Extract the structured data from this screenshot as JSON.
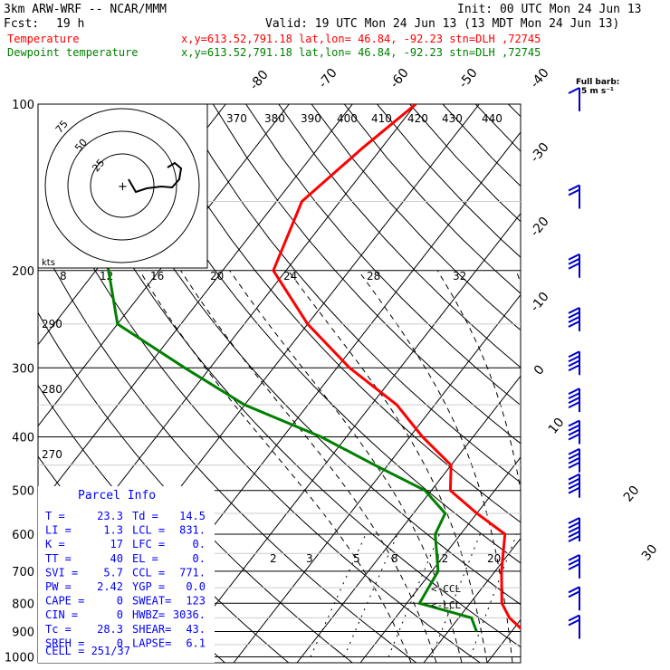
{
  "header": {
    "model": "3km ARW-WRF -- NCAR/MMM",
    "fcst_label": "Fcst:",
    "fcst_value": "19 h",
    "init": "Init: 00 UTC Mon 24 Jun 13",
    "valid": "Valid: 19 UTC Mon 24 Jun 13 (13 MDT Mon 24 Jun 13)",
    "temp_label": "Temperature",
    "dew_label": "Dewpoint temperature",
    "temp_info": "x,y=613.52,791.18   lat,lon= 46.84, -92.23  stn=DLH ,72745",
    "dew_info": "x,y=613.52,791.18   lat,lon= 46.84, -92.23  stn=DLH ,72745",
    "barb_legend_1": "Full barb:",
    "barb_legend_2": "5 m s⁻¹"
  },
  "colors": {
    "temperature": "#ff0000",
    "dewpoint": "#008000",
    "panel_text": "#0000ff",
    "barbs": "#0000cc"
  },
  "hodograph": {
    "label": "kts",
    "ring_labels": [
      "75",
      "50",
      "25"
    ]
  },
  "parcel_info": {
    "title": "Parcel Info",
    "rows": [
      [
        "T   =",
        "23.3",
        "Td =",
        "14.5"
      ],
      [
        "LI  =",
        "1.3",
        "LCL =",
        "831."
      ],
      [
        "K   =",
        "17",
        "LFC =",
        "0."
      ],
      [
        "TT  =",
        "40",
        "EL  =",
        "0."
      ],
      [
        "SVI =",
        "5.7",
        "CCL =",
        "771."
      ],
      [
        "PW  =",
        "2.42",
        "YGP =",
        "0.0"
      ],
      [
        "CAPE =",
        "0",
        "SWEAT=",
        "123"
      ],
      [
        "CIN  =",
        "0",
        "HWBZ=",
        "3036."
      ],
      [
        "Tc   =",
        "28.3",
        "SHEAR=",
        "43."
      ],
      [
        "SREH =",
        "0",
        "LAPSE=",
        "6.1"
      ]
    ],
    "cell": "CELL = 251/37"
  },
  "markers": {
    "ccl": "<-CCL",
    "lcl": "<-LCL"
  },
  "chart_data": {
    "type": "line",
    "pressure_levels": [
      100,
      200,
      300,
      400,
      500,
      600,
      700,
      800,
      900,
      1000
    ],
    "isotherm_labels": [
      "-80",
      "-70",
      "-60",
      "-50",
      "-40",
      "-30",
      "-20",
      "-10",
      "0",
      "10",
      "20",
      "30",
      "40"
    ],
    "theta_labels": [
      "370",
      "380",
      "390",
      "400",
      "410",
      "420",
      "430",
      "440",
      "290",
      "280",
      "270"
    ],
    "mixing_ratio_labels": [
      "8",
      "12",
      "16",
      "20",
      "24",
      "28",
      "32",
      "2",
      "3",
      "5",
      "8",
      "12",
      "20"
    ],
    "series": [
      {
        "name": "Temperature",
        "points": [
          [
            100,
            -60
          ],
          [
            120,
            -63
          ],
          [
            150,
            -66
          ],
          [
            200,
            -62
          ],
          [
            250,
            -50
          ],
          [
            300,
            -38
          ],
          [
            350,
            -26
          ],
          [
            400,
            -18
          ],
          [
            450,
            -10
          ],
          [
            500,
            -7
          ],
          [
            550,
            0
          ],
          [
            600,
            7
          ],
          [
            700,
            11
          ],
          [
            800,
            15
          ],
          [
            850,
            18
          ],
          [
            900,
            22
          ],
          [
            950,
            23.3
          ]
        ]
      },
      {
        "name": "Dewpoint temperature",
        "points": [
          [
            100,
            -95
          ],
          [
            120,
            -95
          ],
          [
            150,
            -90
          ],
          [
            180,
            -92
          ],
          [
            200,
            -88
          ],
          [
            250,
            -80
          ],
          [
            300,
            -64
          ],
          [
            350,
            -50
          ],
          [
            400,
            -34
          ],
          [
            450,
            -22
          ],
          [
            500,
            -11
          ],
          [
            550,
            -5
          ],
          [
            600,
            -4
          ],
          [
            700,
            1
          ],
          [
            800,
            2
          ],
          [
            850,
            12
          ],
          [
            900,
            14.5
          ]
        ]
      }
    ],
    "hodograph_path": [
      [
        185,
        185
      ],
      [
        193,
        180
      ],
      [
        200,
        186
      ],
      [
        198,
        198
      ],
      [
        190,
        207
      ],
      [
        178,
        206
      ],
      [
        162,
        208
      ],
      [
        150,
        212
      ],
      [
        142,
        198
      ]
    ],
    "wind_barbs": [
      {
        "p": 100,
        "n": 1
      },
      {
        "p": 150,
        "n": 2
      },
      {
        "p": 200,
        "n": 3
      },
      {
        "p": 250,
        "n": 4
      },
      {
        "p": 300,
        "n": 4
      },
      {
        "p": 350,
        "n": 4
      },
      {
        "p": 400,
        "n": 4
      },
      {
        "p": 450,
        "n": 4
      },
      {
        "p": 500,
        "n": 4
      },
      {
        "p": 600,
        "n": 5
      },
      {
        "p": 700,
        "n": 3
      },
      {
        "p": 800,
        "n": 2
      },
      {
        "p": 900,
        "n": 2
      }
    ]
  }
}
